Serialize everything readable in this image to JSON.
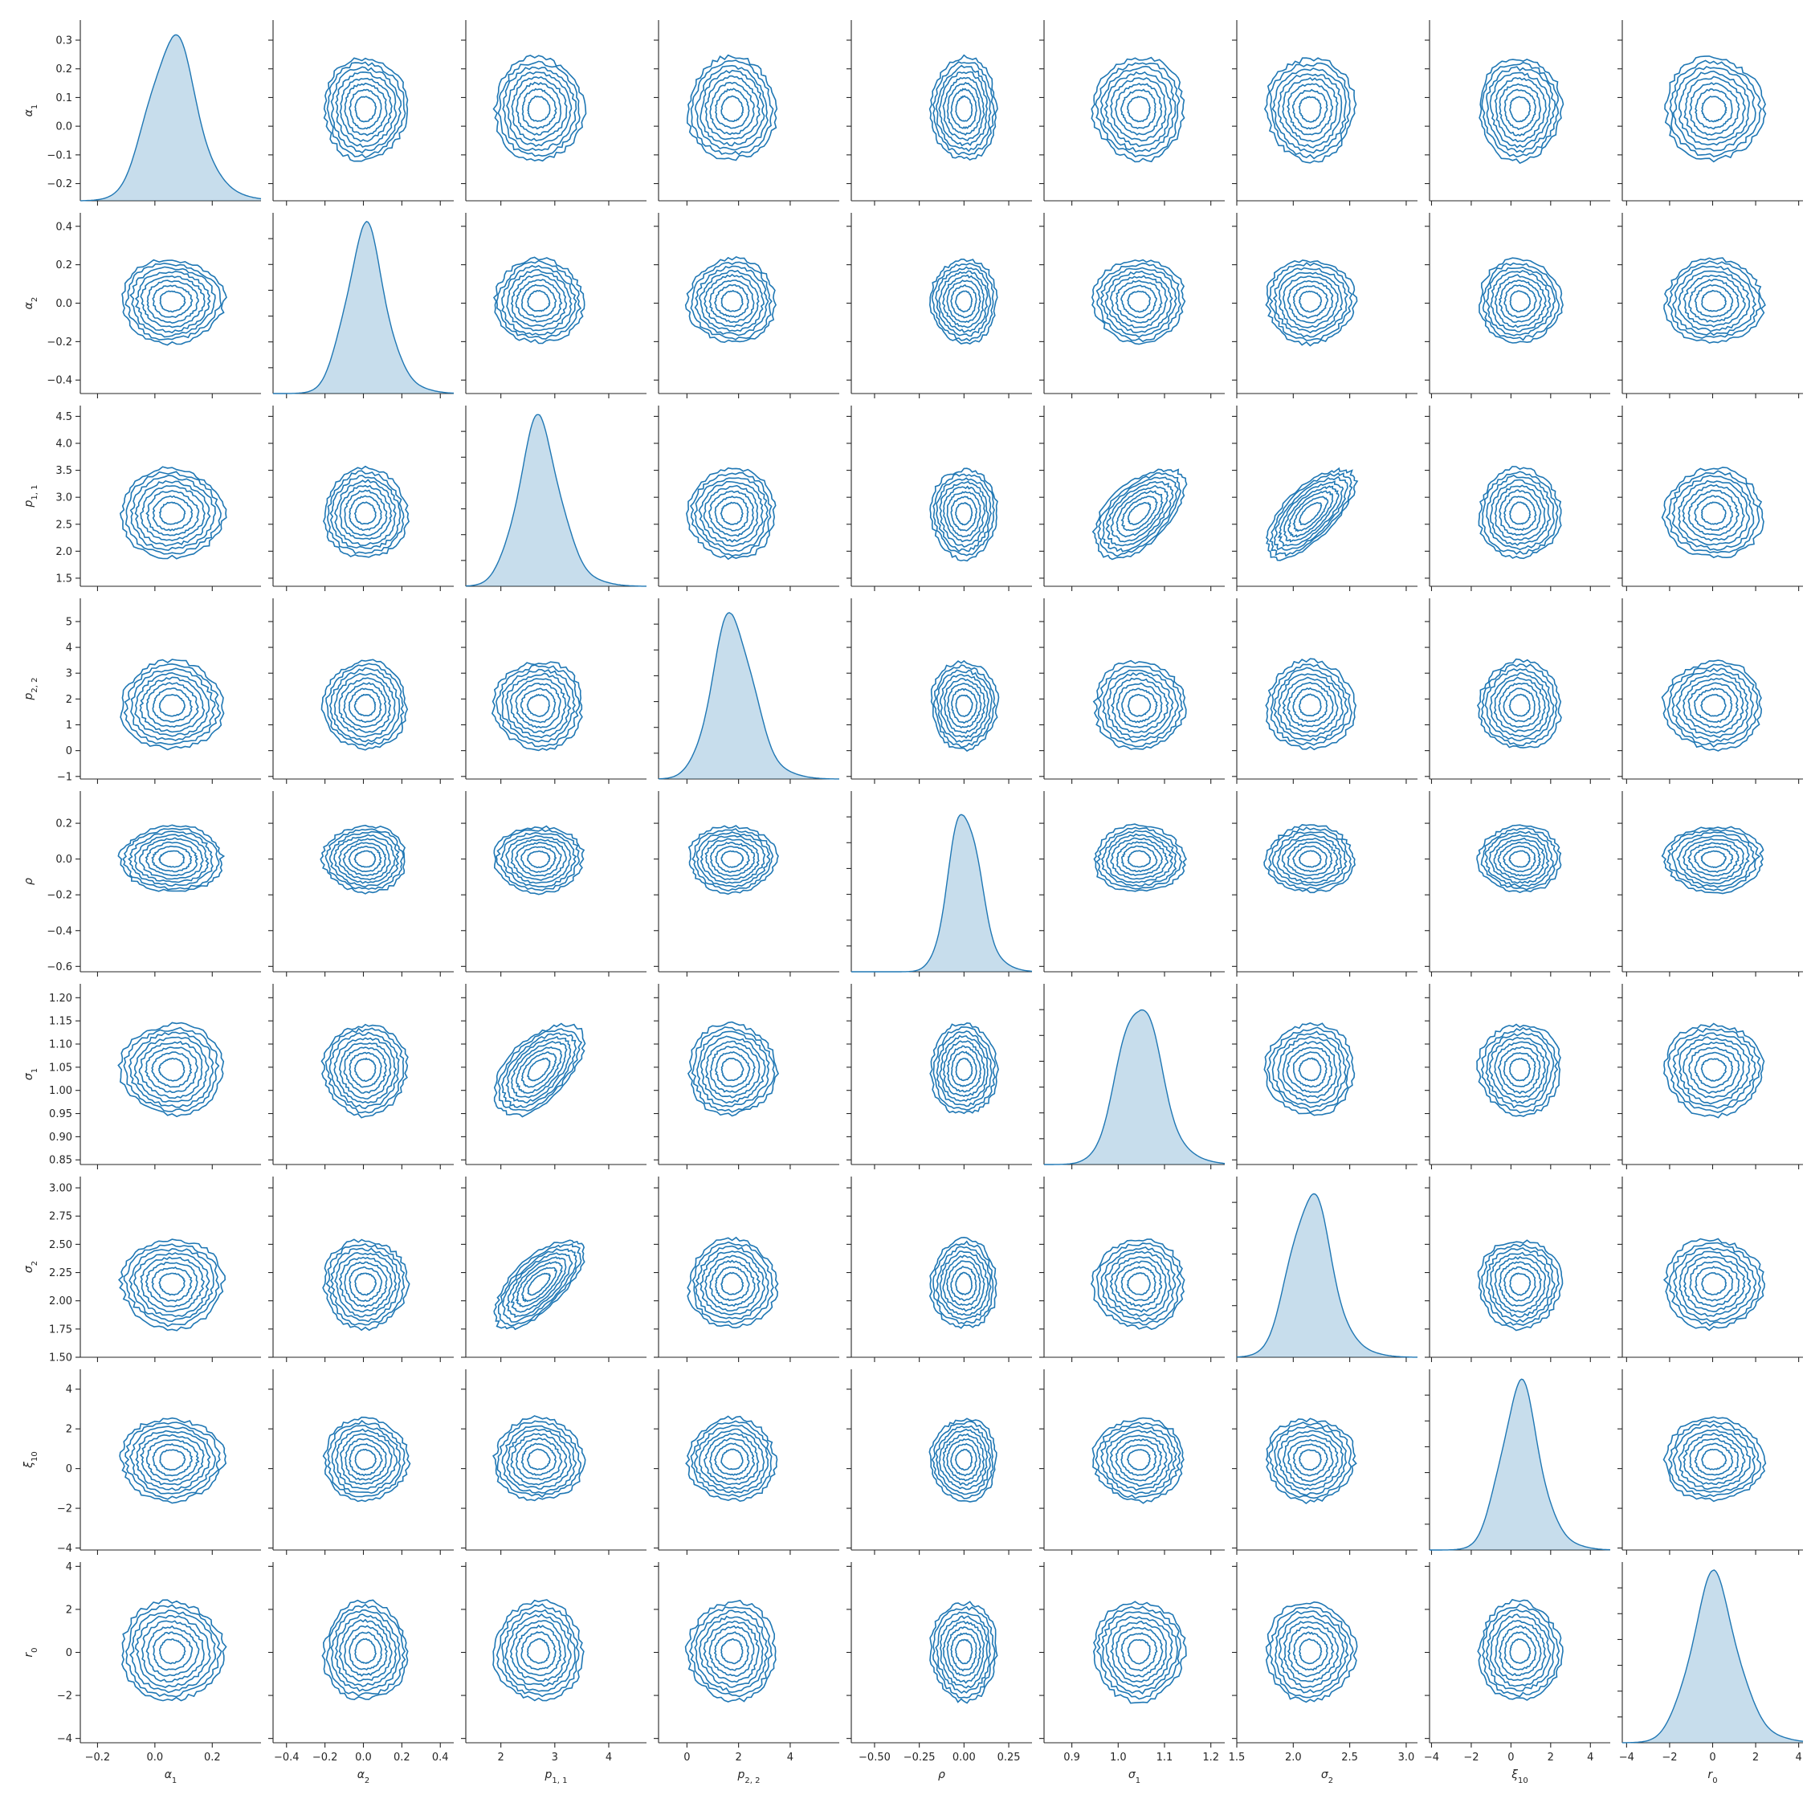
{
  "chart_data": {
    "type": "pairplot",
    "diag_kind": "kde",
    "offdiag_kind": "kde-contour",
    "contour_levels": 8,
    "color": "#1f77b4",
    "variables": [
      {
        "id": "alpha1",
        "main": "α",
        "sub": "1",
        "range": [
          -0.26,
          0.37
        ],
        "ticks": [
          -0.2,
          -0.1,
          0.0,
          0.1,
          0.2,
          0.3
        ],
        "xticks": [
          -0.2,
          0.0,
          0.2
        ],
        "mean": 0.06,
        "sd": 0.082
      },
      {
        "id": "alpha2",
        "main": "α",
        "sub": "2",
        "range": [
          -0.47,
          0.47
        ],
        "ticks": [
          -0.4,
          -0.2,
          0.0,
          0.2,
          0.4
        ],
        "xticks": [
          -0.4,
          -0.2,
          0.0,
          0.2,
          0.4
        ],
        "mean": 0.01,
        "sd": 0.1
      },
      {
        "id": "p11",
        "main": "p",
        "sub": "1, 1",
        "range": [
          1.35,
          4.7
        ],
        "ticks": [
          1.5,
          2.0,
          2.5,
          3.0,
          3.5,
          4.0,
          4.5
        ],
        "xticks": [
          2,
          3,
          4
        ],
        "mean": 2.7,
        "sd": 0.38
      },
      {
        "id": "p22",
        "main": "p",
        "sub": "2, 2",
        "range": [
          -1.1,
          5.9
        ],
        "ticks": [
          -1,
          0,
          1,
          2,
          3,
          4,
          5
        ],
        "xticks": [
          0,
          2,
          4
        ],
        "mean": 1.75,
        "sd": 0.78
      },
      {
        "id": "rho",
        "main": "ρ",
        "sub": "",
        "range": [
          -0.63,
          0.38
        ],
        "ticks": [
          -0.6,
          -0.4,
          -0.2,
          0.0,
          0.2
        ],
        "xticks": [
          -0.5,
          -0.25,
          0.0,
          0.25
        ],
        "xticklabels": [
          "−0.50",
          "−0.25",
          "0.00",
          "0.25"
        ],
        "mean": 0.0,
        "sd": 0.085
      },
      {
        "id": "sigma1",
        "main": "σ",
        "sub": "1",
        "range": [
          0.84,
          1.23
        ],
        "ticks": [
          0.85,
          0.9,
          0.95,
          1.0,
          1.05,
          1.1,
          1.15,
          1.2
        ],
        "xticks": [
          0.9,
          1.0,
          1.1,
          1.2
        ],
        "mean": 1.045,
        "sd": 0.045
      },
      {
        "id": "sigma2",
        "main": "σ",
        "sub": "2",
        "range": [
          1.5,
          3.1
        ],
        "ticks": [
          1.5,
          1.75,
          2.0,
          2.25,
          2.5,
          2.75,
          3.0
        ],
        "xticks": [
          1.5,
          2.0,
          2.5,
          3.0
        ],
        "mean": 2.15,
        "sd": 0.18
      },
      {
        "id": "xi10",
        "main": "ξ",
        "sub": "10",
        "range": [
          -4.1,
          5.0
        ],
        "ticks": [
          -4,
          -2,
          0,
          2,
          4
        ],
        "xticks": [
          -4,
          -2,
          0,
          2,
          4
        ],
        "mean": 0.45,
        "sd": 0.95
      },
      {
        "id": "r0",
        "main": "r",
        "sub": "0",
        "range": [
          -4.2,
          4.2
        ],
        "ticks": [
          -4,
          -2,
          0,
          2,
          4
        ],
        "xticks": [
          -4,
          -2,
          0,
          2,
          4
        ],
        "mean": 0.05,
        "sd": 1.05
      }
    ],
    "correlations": [
      {
        "pair": [
          "p11",
          "sigma1"
        ],
        "r": 0.55
      },
      {
        "pair": [
          "p11",
          "sigma2"
        ],
        "r": 0.68
      }
    ]
  }
}
